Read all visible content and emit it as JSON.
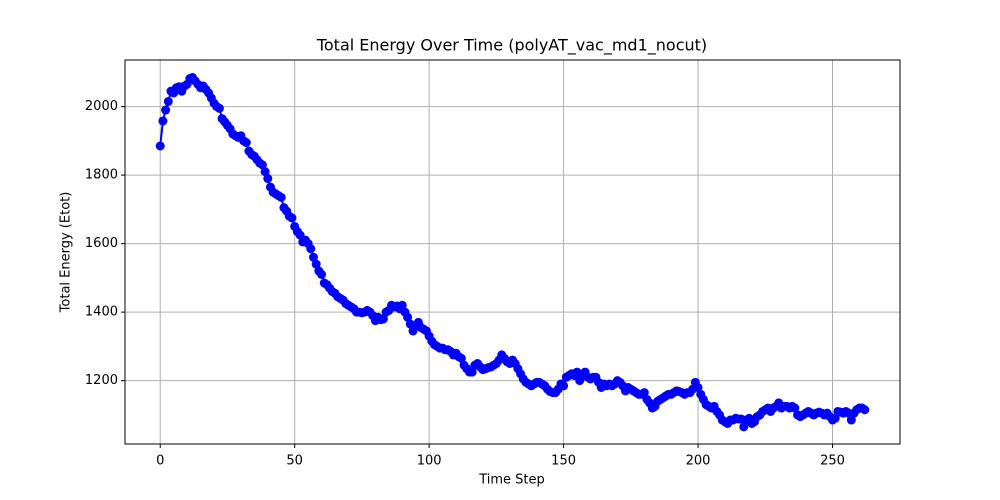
{
  "chart_data": {
    "type": "line",
    "title": "Total Energy Over Time (polyAT_vac_md1_nocut)",
    "x_label": "Time Step",
    "y_label": "Total Energy (Etot)",
    "xlim": [
      -13.1,
      275.1
    ],
    "ylim": [
      1015,
      2136
    ],
    "xticks": [
      0,
      50,
      100,
      150,
      200,
      250
    ],
    "yticks": [
      1200,
      1400,
      1600,
      1800,
      2000
    ],
    "grid": true,
    "x": [
      0,
      1,
      2,
      3,
      4,
      5,
      6,
      7,
      8,
      9,
      10,
      11,
      12,
      13,
      14,
      15,
      16,
      17,
      18,
      19,
      20,
      21,
      22,
      23,
      24,
      25,
      26,
      27,
      28,
      29,
      30,
      31,
      32,
      33,
      34,
      35,
      36,
      37,
      38,
      39,
      40,
      41,
      42,
      43,
      44,
      45,
      46,
      47,
      48,
      49,
      50,
      51,
      52,
      53,
      54,
      55,
      56,
      57,
      58,
      59,
      60,
      61,
      62,
      63,
      64,
      65,
      66,
      67,
      68,
      69,
      70,
      71,
      72,
      73,
      74,
      75,
      76,
      77,
      78,
      79,
      80,
      81,
      82,
      83,
      84,
      85,
      86,
      87,
      88,
      89,
      90,
      91,
      92,
      93,
      94,
      95,
      96,
      97,
      98,
      99,
      100,
      101,
      102,
      103,
      104,
      105,
      106,
      107,
      108,
      109,
      110,
      111,
      112,
      113,
      114,
      115,
      116,
      117,
      118,
      119,
      120,
      121,
      122,
      123,
      124,
      125,
      126,
      127,
      128,
      129,
      130,
      131,
      132,
      133,
      134,
      135,
      136,
      137,
      138,
      139,
      140,
      141,
      142,
      143,
      144,
      145,
      146,
      147,
      148,
      149,
      150,
      151,
      152,
      153,
      154,
      155,
      156,
      157,
      158,
      159,
      160,
      161,
      162,
      163,
      164,
      165,
      166,
      167,
      168,
      169,
      170,
      171,
      172,
      173,
      174,
      175,
      176,
      177,
      178,
      179,
      180,
      181,
      182,
      183,
      184,
      185,
      186,
      187,
      188,
      189,
      190,
      191,
      192,
      193,
      194,
      195,
      196,
      197,
      198,
      199,
      200,
      201,
      202,
      203,
      204,
      205,
      206,
      207,
      208,
      209,
      210,
      211,
      212,
      213,
      214,
      215,
      216,
      217,
      218,
      219,
      220,
      221,
      222,
      223,
      224,
      225,
      226,
      227,
      228,
      229,
      230,
      231,
      232,
      233,
      234,
      235,
      236,
      237,
      238,
      239,
      240,
      241,
      242,
      243,
      244,
      245,
      246,
      247,
      248,
      249,
      250,
      251,
      252,
      253,
      254,
      255,
      256,
      257,
      258,
      259,
      260,
      261,
      262
    ],
    "series": [
      {
        "color": "#0000ff",
        "values": [
          1885,
          1958,
          1990,
          2015,
          2045,
          2040,
          2055,
          2058,
          2045,
          2060,
          2065,
          2082,
          2085,
          2075,
          2065,
          2055,
          2060,
          2050,
          2040,
          2025,
          2010,
          2000,
          1995,
          1965,
          1955,
          1945,
          1935,
          1920,
          1915,
          1910,
          1915,
          1900,
          1895,
          1870,
          1860,
          1855,
          1845,
          1835,
          1830,
          1810,
          1790,
          1765,
          1750,
          1745,
          1740,
          1735,
          1705,
          1695,
          1680,
          1675,
          1650,
          1635,
          1625,
          1605,
          1610,
          1600,
          1585,
          1560,
          1540,
          1520,
          1510,
          1485,
          1480,
          1470,
          1460,
          1455,
          1445,
          1440,
          1435,
          1425,
          1420,
          1415,
          1410,
          1400,
          1400,
          1398,
          1400,
          1405,
          1400,
          1390,
          1375,
          1385,
          1378,
          1380,
          1400,
          1405,
          1420,
          1415,
          1418,
          1410,
          1420,
          1400,
          1385,
          1365,
          1345,
          1360,
          1370,
          1355,
          1350,
          1345,
          1330,
          1315,
          1305,
          1300,
          1295,
          1295,
          1290,
          1290,
          1285,
          1275,
          1280,
          1270,
          1265,
          1245,
          1235,
          1225,
          1225,
          1245,
          1250,
          1240,
          1232,
          1235,
          1238,
          1240,
          1245,
          1250,
          1260,
          1275,
          1265,
          1255,
          1250,
          1260,
          1250,
          1235,
          1220,
          1205,
          1195,
          1190,
          1185,
          1190,
          1195,
          1195,
          1190,
          1185,
          1175,
          1168,
          1165,
          1165,
          1175,
          1190,
          1185,
          1210,
          1215,
          1220,
          1215,
          1225,
          1200,
          1215,
          1225,
          1210,
          1205,
          1210,
          1210,
          1195,
          1180,
          1190,
          1185,
          1190,
          1185,
          1190,
          1200,
          1195,
          1185,
          1170,
          1180,
          1175,
          1170,
          1165,
          1160,
          1160,
          1165,
          1145,
          1135,
          1120,
          1125,
          1140,
          1145,
          1150,
          1155,
          1160,
          1160,
          1165,
          1170,
          1168,
          1165,
          1160,
          1165,
          1165,
          1175,
          1195,
          1180,
          1160,
          1145,
          1130,
          1125,
          1120,
          1125,
          1110,
          1100,
          1085,
          1080,
          1075,
          1085,
          1085,
          1090,
          1088,
          1088,
          1065,
          1085,
          1090,
          1075,
          1080,
          1095,
          1100,
          1110,
          1115,
          1120,
          1110,
          1120,
          1125,
          1135,
          1120,
          1125,
          1125,
          1120,
          1125,
          1120,
          1100,
          1095,
          1100,
          1105,
          1110,
          1105,
          1100,
          1105,
          1108,
          1105,
          1100,
          1105,
          1095,
          1085,
          1090,
          1110,
          1108,
          1105,
          1110,
          1105,
          1085,
          1105,
          1115,
          1120,
          1120,
          1115
        ]
      }
    ]
  }
}
